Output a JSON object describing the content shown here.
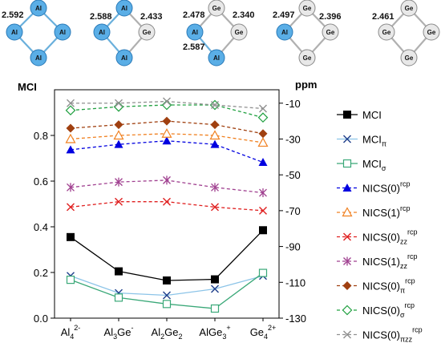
{
  "molecules": [
    {
      "bond_labels": [
        "2.592"
      ],
      "atoms": [
        "Al",
        "Al",
        "Al",
        "Al"
      ]
    },
    {
      "bond_labels": [
        "2.588",
        "2.433"
      ],
      "atoms": [
        "Al",
        "Al",
        "Ge",
        "Al"
      ]
    },
    {
      "bond_labels": [
        "2.478",
        "2.340",
        "2.587"
      ],
      "atoms": [
        "Ge",
        "Al",
        "Ge",
        "Al"
      ]
    },
    {
      "bond_labels": [
        "2.497",
        "2.396"
      ],
      "atoms": [
        "Ge",
        "Al",
        "Ge",
        "Ge"
      ]
    },
    {
      "bond_labels": [
        "2.461"
      ],
      "atoms": [
        "Ge",
        "Ge",
        "Ge",
        "Ge"
      ]
    }
  ],
  "colors": {
    "al": "#5aaee6",
    "ge": "#e8e8e8",
    "al_bond": "#6ab0dc",
    "ge_bond": "#b0b0b0"
  },
  "chart_data": {
    "type": "line",
    "left_axis": {
      "label": "MCI",
      "ylim": [
        0,
        1.0
      ],
      "ticks": [
        "0.0",
        "0.2",
        "0.4",
        "0.6",
        "0.8"
      ]
    },
    "right_axis": {
      "label": "ppm",
      "ylim": [
        -130,
        -2.5
      ],
      "ticks": [
        "-10",
        "-30",
        "-50",
        "-70",
        "-90",
        "-110",
        "-130"
      ]
    },
    "categories": [
      {
        "base": "Al",
        "sub": "4",
        "sup": "2-"
      },
      {
        "base": "Al",
        "sub": "3",
        "base2": "Ge",
        "sup": "-"
      },
      {
        "base": "Al",
        "sub": "2",
        "base2": "Ge",
        "sub2": "2"
      },
      {
        "base": "AlGe",
        "sub": "3",
        "sup": "+"
      },
      {
        "base": "Ge",
        "sub": "4",
        "sup": "2+"
      }
    ],
    "series": [
      {
        "name": "MCI",
        "sub": "",
        "sup": "",
        "axis": "left",
        "marker": "square-filled",
        "color": "#000000",
        "dashed": false,
        "values": [
          0.355,
          0.205,
          0.165,
          0.17,
          0.385
        ]
      },
      {
        "name": "MCI",
        "sub": "π",
        "sup": "",
        "axis": "left",
        "marker": "x",
        "color": "#8cc4e8",
        "marker_color": "#1f3f8c",
        "dashed": false,
        "values": [
          0.185,
          0.11,
          0.1,
          0.128,
          0.185
        ]
      },
      {
        "name": "MCI",
        "sub": "σ",
        "sup": "",
        "axis": "left",
        "marker": "square-open",
        "color": "#3aa878",
        "dashed": false,
        "values": [
          0.168,
          0.09,
          0.062,
          0.042,
          0.198
        ]
      },
      {
        "name": "NICS(0)",
        "sub": "",
        "sup": "rcp",
        "axis": "right",
        "marker": "triangle-filled",
        "color": "#0000e0",
        "dashed": true,
        "values": [
          -36,
          -33,
          -31,
          -33,
          -43
        ]
      },
      {
        "name": "NICS(1)",
        "sub": "",
        "sup": "rcp",
        "axis": "right",
        "marker": "triangle-open",
        "color": "#f08020",
        "dashed": true,
        "values": [
          -30,
          -28,
          -27,
          -28,
          -32
        ]
      },
      {
        "name": "NICS(0)",
        "sub": "zz",
        "sup": "rcp",
        "axis": "right",
        "marker": "x",
        "color": "#e02020",
        "dashed": true,
        "values": [
          -68,
          -65,
          -65,
          -68,
          -70
        ]
      },
      {
        "name": "NICS(1)",
        "sub": "zz",
        "sup": "rcp",
        "axis": "right",
        "marker": "star",
        "color": "#a04090",
        "dashed": true,
        "values": [
          -57,
          -54,
          -53,
          -57,
          -60
        ]
      },
      {
        "name": "NICS(0)",
        "sub": "π",
        "sup": "rcp",
        "axis": "right",
        "marker": "diamond-filled",
        "color": "#a04010",
        "dashed": true,
        "values": [
          -24,
          -22,
          -20,
          -22,
          -27
        ]
      },
      {
        "name": "NICS(0)",
        "sub": "σ",
        "sup": "rcp",
        "axis": "right",
        "marker": "diamond-open",
        "color": "#20a040",
        "dashed": true,
        "values": [
          -14,
          -12,
          -11,
          -11,
          -18
        ]
      },
      {
        "name": "NICS(0)",
        "sub": "πzz",
        "sup": "rcp",
        "axis": "right",
        "marker": "x",
        "color": "#909090",
        "dashed": true,
        "values": [
          -10,
          -10,
          -9,
          -11,
          -13
        ]
      }
    ]
  }
}
